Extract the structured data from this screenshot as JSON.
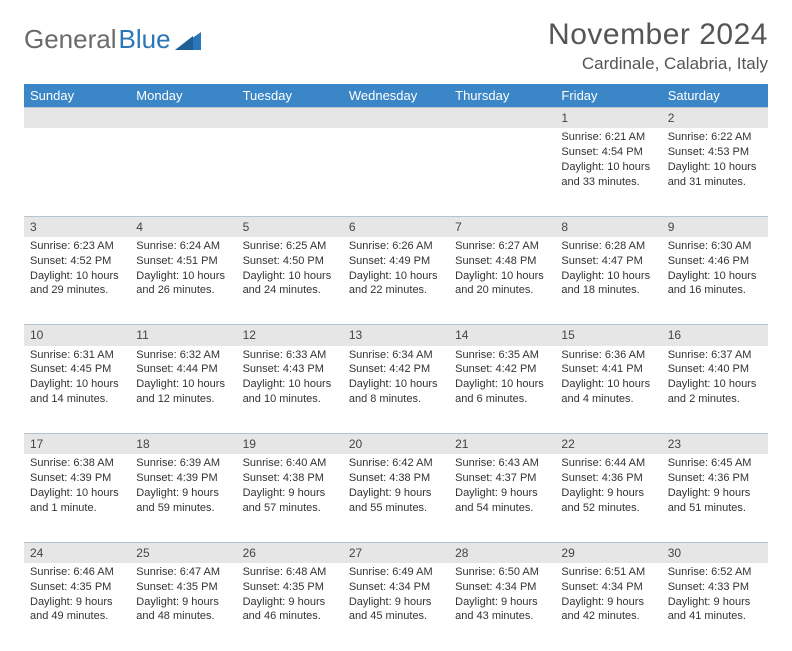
{
  "logo": {
    "word1": "General",
    "word2": "Blue"
  },
  "title": "November 2024",
  "subtitle": "Cardinale, Calabria, Italy",
  "colors": {
    "header_bg": "#3b86c6",
    "header_text": "#ffffff",
    "daynum_bg": "#e6e6e6",
    "border": "#b7c4d0",
    "logo_gray": "#6a6a6a",
    "logo_blue": "#2a76b9",
    "text": "#333333"
  },
  "day_headers": [
    "Sunday",
    "Monday",
    "Tuesday",
    "Wednesday",
    "Thursday",
    "Friday",
    "Saturday"
  ],
  "weeks": [
    [
      null,
      null,
      null,
      null,
      null,
      {
        "n": "1",
        "sr": "Sunrise: 6:21 AM",
        "ss": "Sunset: 4:54 PM",
        "dl": "Daylight: 10 hours and 33 minutes."
      },
      {
        "n": "2",
        "sr": "Sunrise: 6:22 AM",
        "ss": "Sunset: 4:53 PM",
        "dl": "Daylight: 10 hours and 31 minutes."
      }
    ],
    [
      {
        "n": "3",
        "sr": "Sunrise: 6:23 AM",
        "ss": "Sunset: 4:52 PM",
        "dl": "Daylight: 10 hours and 29 minutes."
      },
      {
        "n": "4",
        "sr": "Sunrise: 6:24 AM",
        "ss": "Sunset: 4:51 PM",
        "dl": "Daylight: 10 hours and 26 minutes."
      },
      {
        "n": "5",
        "sr": "Sunrise: 6:25 AM",
        "ss": "Sunset: 4:50 PM",
        "dl": "Daylight: 10 hours and 24 minutes."
      },
      {
        "n": "6",
        "sr": "Sunrise: 6:26 AM",
        "ss": "Sunset: 4:49 PM",
        "dl": "Daylight: 10 hours and 22 minutes."
      },
      {
        "n": "7",
        "sr": "Sunrise: 6:27 AM",
        "ss": "Sunset: 4:48 PM",
        "dl": "Daylight: 10 hours and 20 minutes."
      },
      {
        "n": "8",
        "sr": "Sunrise: 6:28 AM",
        "ss": "Sunset: 4:47 PM",
        "dl": "Daylight: 10 hours and 18 minutes."
      },
      {
        "n": "9",
        "sr": "Sunrise: 6:30 AM",
        "ss": "Sunset: 4:46 PM",
        "dl": "Daylight: 10 hours and 16 minutes."
      }
    ],
    [
      {
        "n": "10",
        "sr": "Sunrise: 6:31 AM",
        "ss": "Sunset: 4:45 PM",
        "dl": "Daylight: 10 hours and 14 minutes."
      },
      {
        "n": "11",
        "sr": "Sunrise: 6:32 AM",
        "ss": "Sunset: 4:44 PM",
        "dl": "Daylight: 10 hours and 12 minutes."
      },
      {
        "n": "12",
        "sr": "Sunrise: 6:33 AM",
        "ss": "Sunset: 4:43 PM",
        "dl": "Daylight: 10 hours and 10 minutes."
      },
      {
        "n": "13",
        "sr": "Sunrise: 6:34 AM",
        "ss": "Sunset: 4:42 PM",
        "dl": "Daylight: 10 hours and 8 minutes."
      },
      {
        "n": "14",
        "sr": "Sunrise: 6:35 AM",
        "ss": "Sunset: 4:42 PM",
        "dl": "Daylight: 10 hours and 6 minutes."
      },
      {
        "n": "15",
        "sr": "Sunrise: 6:36 AM",
        "ss": "Sunset: 4:41 PM",
        "dl": "Daylight: 10 hours and 4 minutes."
      },
      {
        "n": "16",
        "sr": "Sunrise: 6:37 AM",
        "ss": "Sunset: 4:40 PM",
        "dl": "Daylight: 10 hours and 2 minutes."
      }
    ],
    [
      {
        "n": "17",
        "sr": "Sunrise: 6:38 AM",
        "ss": "Sunset: 4:39 PM",
        "dl": "Daylight: 10 hours and 1 minute."
      },
      {
        "n": "18",
        "sr": "Sunrise: 6:39 AM",
        "ss": "Sunset: 4:39 PM",
        "dl": "Daylight: 9 hours and 59 minutes."
      },
      {
        "n": "19",
        "sr": "Sunrise: 6:40 AM",
        "ss": "Sunset: 4:38 PM",
        "dl": "Daylight: 9 hours and 57 minutes."
      },
      {
        "n": "20",
        "sr": "Sunrise: 6:42 AM",
        "ss": "Sunset: 4:38 PM",
        "dl": "Daylight: 9 hours and 55 minutes."
      },
      {
        "n": "21",
        "sr": "Sunrise: 6:43 AM",
        "ss": "Sunset: 4:37 PM",
        "dl": "Daylight: 9 hours and 54 minutes."
      },
      {
        "n": "22",
        "sr": "Sunrise: 6:44 AM",
        "ss": "Sunset: 4:36 PM",
        "dl": "Daylight: 9 hours and 52 minutes."
      },
      {
        "n": "23",
        "sr": "Sunrise: 6:45 AM",
        "ss": "Sunset: 4:36 PM",
        "dl": "Daylight: 9 hours and 51 minutes."
      }
    ],
    [
      {
        "n": "24",
        "sr": "Sunrise: 6:46 AM",
        "ss": "Sunset: 4:35 PM",
        "dl": "Daylight: 9 hours and 49 minutes."
      },
      {
        "n": "25",
        "sr": "Sunrise: 6:47 AM",
        "ss": "Sunset: 4:35 PM",
        "dl": "Daylight: 9 hours and 48 minutes."
      },
      {
        "n": "26",
        "sr": "Sunrise: 6:48 AM",
        "ss": "Sunset: 4:35 PM",
        "dl": "Daylight: 9 hours and 46 minutes."
      },
      {
        "n": "27",
        "sr": "Sunrise: 6:49 AM",
        "ss": "Sunset: 4:34 PM",
        "dl": "Daylight: 9 hours and 45 minutes."
      },
      {
        "n": "28",
        "sr": "Sunrise: 6:50 AM",
        "ss": "Sunset: 4:34 PM",
        "dl": "Daylight: 9 hours and 43 minutes."
      },
      {
        "n": "29",
        "sr": "Sunrise: 6:51 AM",
        "ss": "Sunset: 4:34 PM",
        "dl": "Daylight: 9 hours and 42 minutes."
      },
      {
        "n": "30",
        "sr": "Sunrise: 6:52 AM",
        "ss": "Sunset: 4:33 PM",
        "dl": "Daylight: 9 hours and 41 minutes."
      }
    ]
  ]
}
